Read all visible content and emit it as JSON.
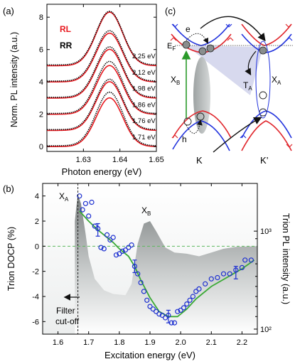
{
  "chart_data": [
    {
      "panel": "(a)",
      "type": "line",
      "xlabel": "Photon energy (eV)",
      "ylabel": "Norm. PL intensity (a.u.)",
      "xlim": [
        1.62,
        1.65
      ],
      "ylim": [
        -0.3,
        8.8
      ],
      "xticks": [
        1.63,
        1.64,
        1.65
      ],
      "yticks": [
        0,
        2,
        4,
        6,
        8
      ],
      "legend": [
        {
          "name": "RL",
          "color": "#e8181e"
        },
        {
          "name": "RR",
          "color": "#000000"
        }
      ],
      "series": [
        {
          "label": "2.25 eV",
          "offset": 5.0,
          "rl_peak": 3.3,
          "rr_peak": 3.3
        },
        {
          "label": "2.12 eV",
          "offset": 4.0,
          "rl_peak": 3.0,
          "rr_peak": 3.1
        },
        {
          "label": "1.98 eV",
          "offset": 3.0,
          "rl_peak": 3.0,
          "rr_peak": 3.1
        },
        {
          "label": "1.86 eV",
          "offset": 2.0,
          "rl_peak": 3.0,
          "rr_peak": 3.2
        },
        {
          "label": "1.76 eV",
          "offset": 1.0,
          "rl_peak": 3.0,
          "rr_peak": 3.1
        },
        {
          "label": "1.71 eV",
          "offset": 0.0,
          "rl_peak": 3.0,
          "rr_peak": 3.3
        }
      ],
      "peak_center": 1.6372,
      "peak_width": 0.0036
    },
    {
      "panel": "(b)",
      "type": "scatter",
      "xlabel": "Excitation energy (eV)",
      "ylabel": "Trion DOCP (%)",
      "ylabel_right": "Trion PL intensity (a.u.)",
      "xlim": [
        1.55,
        2.25
      ],
      "ylim": [
        -7,
        5
      ],
      "xticks": [
        1.6,
        1.7,
        1.8,
        1.9,
        2.0,
        2.1,
        2.2
      ],
      "yticks": [
        -6,
        -4,
        -2,
        0,
        2,
        4
      ],
      "right_ticks": [
        "10³",
        "10²"
      ],
      "labels": {
        "xa": "X_A",
        "xb": "X_B",
        "filter": "Filter cut-off"
      },
      "points": [
        {
          "x": 1.67,
          "y": 4.0
        },
        {
          "x": 1.68,
          "y": 2.9
        },
        {
          "x": 1.69,
          "y": 3.4
        },
        {
          "x": 1.7,
          "y": 2.4
        },
        {
          "x": 1.71,
          "y": 3.5
        },
        {
          "x": 1.72,
          "y": 1.6
        },
        {
          "x": 1.73,
          "y": 1.4
        },
        {
          "x": 1.74,
          "y": -0.1
        },
        {
          "x": 1.75,
          "y": -0.2
        },
        {
          "x": 1.76,
          "y": 0.9
        },
        {
          "x": 1.77,
          "y": 0.5
        },
        {
          "x": 1.78,
          "y": 0.7
        },
        {
          "x": 1.79,
          "y": -0.7
        },
        {
          "x": 1.8,
          "y": -0.6
        },
        {
          "x": 1.81,
          "y": -0.4
        },
        {
          "x": 1.82,
          "y": -0.3
        },
        {
          "x": 1.83,
          "y": -0.1
        },
        {
          "x": 1.84,
          "y": 0.1
        },
        {
          "x": 1.85,
          "y": -1.6
        },
        {
          "x": 1.86,
          "y": -2.2
        },
        {
          "x": 1.87,
          "y": -2.9
        },
        {
          "x": 1.88,
          "y": -3.6
        },
        {
          "x": 1.89,
          "y": -4.3
        },
        {
          "x": 1.9,
          "y": -4.8
        },
        {
          "x": 1.91,
          "y": -5.0
        },
        {
          "x": 1.92,
          "y": -5.2
        },
        {
          "x": 1.93,
          "y": -5.4
        },
        {
          "x": 1.94,
          "y": -5.5
        },
        {
          "x": 1.95,
          "y": -5.7
        },
        {
          "x": 1.96,
          "y": -5.5
        },
        {
          "x": 1.97,
          "y": -6.1
        },
        {
          "x": 1.98,
          "y": -6.1
        },
        {
          "x": 1.99,
          "y": -5.2
        },
        {
          "x": 2.0,
          "y": -5.1
        },
        {
          "x": 2.01,
          "y": -4.9
        },
        {
          "x": 2.02,
          "y": -4.6
        },
        {
          "x": 2.03,
          "y": -4.3
        },
        {
          "x": 2.04,
          "y": -4.0
        },
        {
          "x": 2.05,
          "y": -3.6
        },
        {
          "x": 2.06,
          "y": -3.4
        },
        {
          "x": 2.08,
          "y": -3.0
        },
        {
          "x": 2.1,
          "y": -2.6
        },
        {
          "x": 2.12,
          "y": -2.5
        },
        {
          "x": 2.14,
          "y": -2.2
        },
        {
          "x": 2.16,
          "y": -2.2
        },
        {
          "x": 2.18,
          "y": -1.9
        },
        {
          "x": 2.2,
          "y": -1.7
        },
        {
          "x": 2.21,
          "y": -1.1
        },
        {
          "x": 2.23,
          "y": -1.1
        }
      ],
      "error_bars": [
        {
          "x": 1.73,
          "y": 1.3,
          "err": 0.5
        },
        {
          "x": 1.85,
          "y": -1.6,
          "err": 0.5
        },
        {
          "x": 1.96,
          "y": -5.6,
          "err": 0.5
        },
        {
          "x": 2.18,
          "y": -2.1,
          "err": 0.5
        }
      ],
      "fit": [
        {
          "x": 1.67,
          "y": 2.8
        },
        {
          "x": 1.7,
          "y": 2.0
        },
        {
          "x": 1.73,
          "y": 1.3
        },
        {
          "x": 1.76,
          "y": 0.7
        },
        {
          "x": 1.78,
          "y": 0.3
        },
        {
          "x": 1.8,
          "y": -0.2
        },
        {
          "x": 1.83,
          "y": -0.8
        },
        {
          "x": 1.85,
          "y": -1.6
        },
        {
          "x": 1.87,
          "y": -2.7
        },
        {
          "x": 1.9,
          "y": -4.1
        },
        {
          "x": 1.93,
          "y": -5.2
        },
        {
          "x": 1.96,
          "y": -5.6
        },
        {
          "x": 1.99,
          "y": -5.6
        },
        {
          "x": 2.02,
          "y": -5.0
        },
        {
          "x": 2.05,
          "y": -4.2
        },
        {
          "x": 2.1,
          "y": -3.2
        },
        {
          "x": 2.15,
          "y": -2.5
        },
        {
          "x": 2.2,
          "y": -1.8
        },
        {
          "x": 2.24,
          "y": -1.1
        }
      ],
      "pl_spectrum": [
        {
          "x": 1.655,
          "y": 2.0
        },
        {
          "x": 1.66,
          "y": 3.2
        },
        {
          "x": 1.665,
          "y": 4.1
        },
        {
          "x": 1.675,
          "y": 3.4
        },
        {
          "x": 1.69,
          "y": 1.0
        },
        {
          "x": 1.7,
          "y": -0.8
        },
        {
          "x": 1.72,
          "y": -2.6
        },
        {
          "x": 1.75,
          "y": -3.5
        },
        {
          "x": 1.78,
          "y": -3.8
        },
        {
          "x": 1.82,
          "y": -3.9
        },
        {
          "x": 1.84,
          "y": -3.0
        },
        {
          "x": 1.86,
          "y": 0.2
        },
        {
          "x": 1.88,
          "y": 1.8
        },
        {
          "x": 1.9,
          "y": 2.0
        },
        {
          "x": 1.92,
          "y": 1.2
        },
        {
          "x": 1.95,
          "y": -0.1
        },
        {
          "x": 1.98,
          "y": -0.5
        },
        {
          "x": 2.02,
          "y": -0.6
        },
        {
          "x": 2.06,
          "y": -0.8
        },
        {
          "x": 2.1,
          "y": -0.5
        },
        {
          "x": 2.14,
          "y": -0.2
        },
        {
          "x": 2.18,
          "y": -0.05
        },
        {
          "x": 2.25,
          "y": 0.0
        }
      ]
    }
  ],
  "panel_c": {
    "label": "(c)",
    "labels": {
      "e": "e",
      "ef": "E_F",
      "xb": "X_B",
      "ta": "T_A",
      "xa": "X_A",
      "h": "h",
      "k": "K",
      "kp": "K’"
    }
  },
  "colors": {
    "rl": "#e8181e",
    "rr": "#000000",
    "fit": "#3aa935",
    "points": "#1c2fd0",
    "zero_line": "#5cb85c",
    "band_red": "#e0252b",
    "band_blue": "#2233dd",
    "shade": "#c9cce8"
  }
}
